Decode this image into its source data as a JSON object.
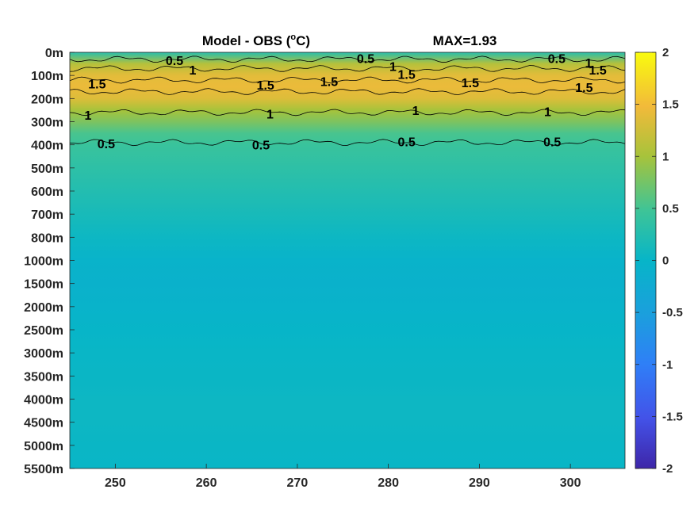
{
  "chart_data": {
    "type": "heatmap",
    "title": "Model - OBS (°C)",
    "title_prefix": "Model - OBS (",
    "title_degree": "o",
    "title_suffix": "C)",
    "max_label": "MAX=1.93",
    "x_ticks": [
      250,
      260,
      270,
      280,
      290,
      300
    ],
    "xlim": [
      245,
      306
    ],
    "y_tick_labels": [
      "0m",
      "100m",
      "200m",
      "300m",
      "400m",
      "500m",
      "600m",
      "700m",
      "800m",
      "1000m",
      "1500m",
      "2000m",
      "2500m",
      "3000m",
      "3500m",
      "4000m",
      "4500m",
      "5000m",
      "5500m"
    ],
    "colorbar": {
      "limits": [
        -2,
        2
      ],
      "ticks": [
        "2",
        "1.5",
        "1",
        "0.5",
        "0",
        "-0.5",
        "-1",
        "-1.5",
        "-2"
      ]
    },
    "depth_profile": [
      {
        "level": 0,
        "value": 0.3
      },
      {
        "level": 0.5,
        "value": 1.1
      },
      {
        "level": 1,
        "value": 1.4
      },
      {
        "level": 1.5,
        "value": 1.45
      },
      {
        "level": 2,
        "value": 1.35
      },
      {
        "level": 2.5,
        "value": 1.0
      },
      {
        "level": 3,
        "value": 0.8
      },
      {
        "level": 3.5,
        "value": 0.55
      },
      {
        "level": 4,
        "value": 0.45
      },
      {
        "level": 5,
        "value": 0.35
      },
      {
        "level": 6,
        "value": 0.25
      },
      {
        "level": 7,
        "value": 0.15
      },
      {
        "level": 8,
        "value": 0.05
      },
      {
        "level": 9,
        "value": -0.05
      },
      {
        "level": 10,
        "value": -0.08
      },
      {
        "level": 11,
        "value": -0.05
      },
      {
        "level": 12,
        "value": 0.0
      },
      {
        "level": 13,
        "value": 0.02
      },
      {
        "level": 14,
        "value": 0.03
      },
      {
        "level": 15,
        "value": 0.05
      },
      {
        "level": 16,
        "value": 0.05
      },
      {
        "level": 17,
        "value": 0.03
      },
      {
        "level": 18,
        "value": 0.02
      }
    ],
    "contours": [
      {
        "level": "0.5",
        "depth_level": 0.3
      },
      {
        "level": "1",
        "depth_level": 0.7
      },
      {
        "level": "1.5",
        "depth_level": 1.2
      },
      {
        "level": "1.5",
        "depth_level": 1.7
      },
      {
        "level": "1",
        "depth_level": 2.6
      },
      {
        "level": "0.5",
        "depth_level": 3.9
      }
    ],
    "contour_labels": [
      {
        "text": "0.5",
        "x": 256.5,
        "depth_level": 0.35
      },
      {
        "text": "1",
        "x": 258.5,
        "depth_level": 0.75
      },
      {
        "text": "1.5",
        "x": 248.0,
        "depth_level": 1.35
      },
      {
        "text": "1.5",
        "x": 266.5,
        "depth_level": 1.4
      },
      {
        "text": "1.5",
        "x": 273.5,
        "depth_level": 1.25
      },
      {
        "text": "0.5",
        "x": 277.5,
        "depth_level": 0.25
      },
      {
        "text": "1",
        "x": 280.5,
        "depth_level": 0.6
      },
      {
        "text": "1.5",
        "x": 282.0,
        "depth_level": 0.95
      },
      {
        "text": "1.5",
        "x": 289.0,
        "depth_level": 1.3
      },
      {
        "text": "0.5",
        "x": 298.5,
        "depth_level": 0.25
      },
      {
        "text": "1",
        "x": 302.0,
        "depth_level": 0.45
      },
      {
        "text": "1.5",
        "x": 303.0,
        "depth_level": 0.75
      },
      {
        "text": "1.5",
        "x": 301.5,
        "depth_level": 1.5
      },
      {
        "text": "1",
        "x": 247.0,
        "depth_level": 2.7
      },
      {
        "text": "1",
        "x": 267.0,
        "depth_level": 2.65
      },
      {
        "text": "1",
        "x": 283.0,
        "depth_level": 2.5
      },
      {
        "text": "1",
        "x": 297.5,
        "depth_level": 2.55
      },
      {
        "text": "0.5",
        "x": 249.0,
        "depth_level": 3.95
      },
      {
        "text": "0.5",
        "x": 266.0,
        "depth_level": 4.0
      },
      {
        "text": "0.5",
        "x": 282.0,
        "depth_level": 3.85
      },
      {
        "text": "0.5",
        "x": 298.0,
        "depth_level": 3.85
      }
    ]
  }
}
